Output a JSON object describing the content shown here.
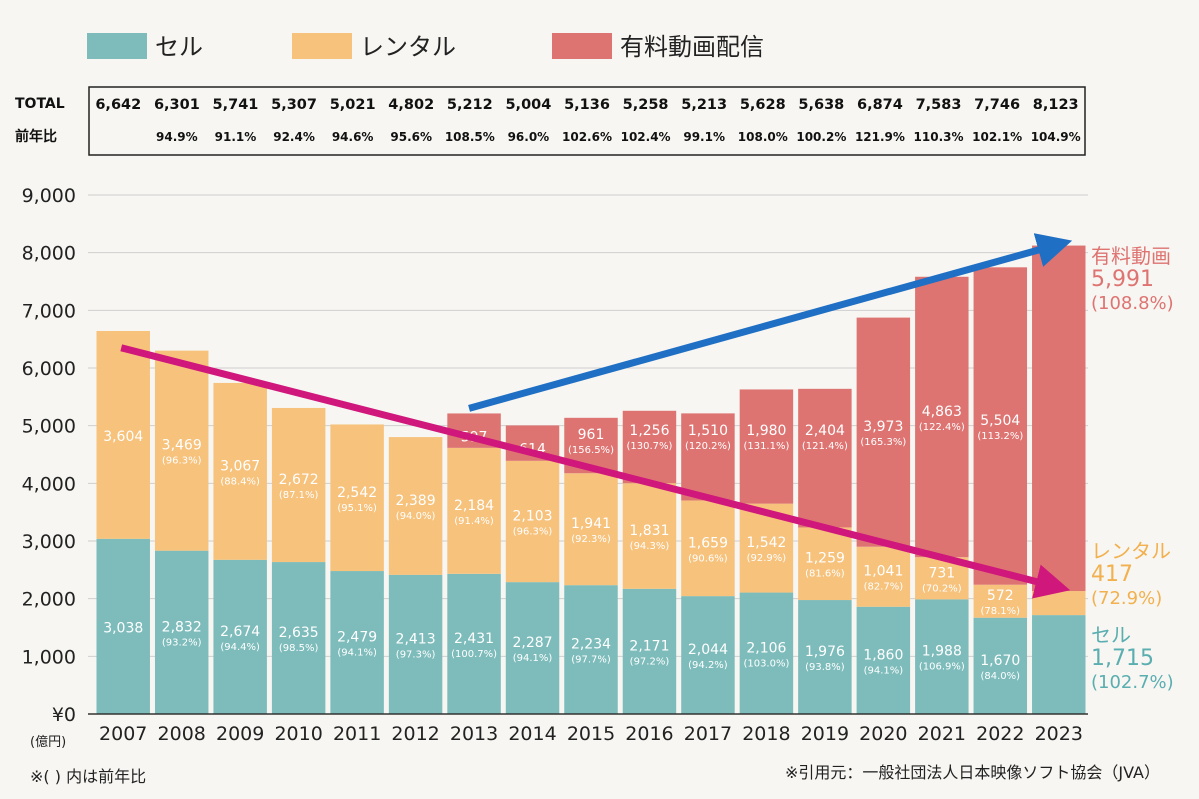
{
  "chart_data": {
    "type": "bar",
    "stacked": true,
    "categories": [
      "2007",
      "2008",
      "2009",
      "2010",
      "2011",
      "2012",
      "2013",
      "2014",
      "2015",
      "2016",
      "2017",
      "2018",
      "2019",
      "2020",
      "2021",
      "2022",
      "2023"
    ],
    "ylim": [
      0,
      9000
    ],
    "yticks": [
      "¥0",
      "1,000",
      "2,000",
      "3,000",
      "4,000",
      "5,000",
      "6,000",
      "7,000",
      "8,000",
      "9,000"
    ],
    "yunit": "(億円)",
    "colors": {
      "sell": "#7dbcbb",
      "rental": "#f6c27c",
      "stream": "#de7472",
      "blue_arrow": "#1f6fc4",
      "pink_arrow": "#d0177b"
    },
    "legend": [
      "セル",
      "レンタル",
      "有料動画配信"
    ],
    "series": [
      {
        "name": "セル",
        "values": [
          3038,
          2832,
          2674,
          2635,
          2479,
          2413,
          2431,
          2287,
          2234,
          2171,
          2044,
          2106,
          1976,
          1860,
          1988,
          1670,
          1715
        ],
        "labels": [
          "3,038",
          "2,832",
          "2,674",
          "2,635",
          "2,479",
          "2,413",
          "2,431",
          "2,287",
          "2,234",
          "2,171",
          "2,044",
          "2,106",
          "1,976",
          "1,860",
          "1,988",
          "1,670",
          ""
        ],
        "yoy": [
          "",
          "(93.2%)",
          "(94.4%)",
          "(98.5%)",
          "(94.1%)",
          "(97.3%)",
          "(100.7%)",
          "(94.1%)",
          "(97.7%)",
          "(97.2%)",
          "(94.2%)",
          "(103.0%)",
          "(93.8%)",
          "(94.1%)",
          "(106.9%)",
          "(84.0%)",
          ""
        ]
      },
      {
        "name": "レンタル",
        "values": [
          3604,
          3469,
          3067,
          2672,
          2542,
          2389,
          2184,
          2103,
          1941,
          1831,
          1659,
          1542,
          1259,
          1041,
          731,
          572,
          417
        ],
        "labels": [
          "3,604",
          "3,469",
          "3,067",
          "2,672",
          "2,542",
          "2,389",
          "2,184",
          "2,103",
          "1,941",
          "1,831",
          "1,659",
          "1,542",
          "1,259",
          "1,041",
          "731",
          "572",
          ""
        ],
        "yoy": [
          "",
          "(96.3%)",
          "(88.4%)",
          "(87.1%)",
          "(95.1%)",
          "(94.0%)",
          "(91.4%)",
          "(96.3%)",
          "(92.3%)",
          "(94.3%)",
          "(90.6%)",
          "(92.9%)",
          "(81.6%)",
          "(82.7%)",
          "(70.2%)",
          "(78.1%)",
          ""
        ]
      },
      {
        "name": "有料動画配信",
        "values": [
          0,
          0,
          0,
          0,
          0,
          0,
          597,
          614,
          961,
          1256,
          1510,
          1980,
          2404,
          3973,
          4863,
          5504,
          5991
        ],
        "labels": [
          "",
          "",
          "",
          "",
          "",
          "",
          "597",
          "614",
          "961",
          "1,256",
          "1,510",
          "1,980",
          "2,404",
          "3,973",
          "4,863",
          "5,504",
          ""
        ],
        "yoy": [
          "",
          "",
          "",
          "",
          "",
          "",
          "",
          "",
          "(156.5%)",
          "(130.7%)",
          "(120.2%)",
          "(131.1%)",
          "(121.4%)",
          "(165.3%)",
          "(122.4%)",
          "(113.2%)",
          ""
        ]
      }
    ],
    "table": {
      "total_label": "TOTAL",
      "yoy_label": "前年比",
      "total": [
        "6,642",
        "6,301",
        "5,741",
        "5,307",
        "5,021",
        "4,802",
        "5,212",
        "5,004",
        "5,136",
        "5,258",
        "5,213",
        "5,628",
        "5,638",
        "6,874",
        "7,583",
        "7,746",
        "8,123"
      ],
      "yoy": [
        "",
        "94.9%",
        "91.1%",
        "92.4%",
        "94.6%",
        "95.6%",
        "108.5%",
        "96.0%",
        "102.6%",
        "102.4%",
        "99.1%",
        "108.0%",
        "100.2%",
        "121.9%",
        "110.3%",
        "102.1%",
        "104.9%"
      ]
    },
    "annotations": [
      {
        "lines": [
          "有料動画",
          "5,991",
          "(108.8%)"
        ],
        "color": "#de7472",
        "anchor": 5991
      },
      {
        "lines": [
          "レンタル",
          "417",
          "(72.9%)"
        ],
        "color": "#f2b04e",
        "anchor": 2200
      },
      {
        "lines": [
          "セル",
          "1,715",
          "(102.7%)"
        ],
        "color": "#5aaeb0",
        "anchor": 1100
      }
    ],
    "arrows": [
      {
        "name": "streaming-growth-arrow",
        "from": {
          "x": "2013",
          "y": 5300
        },
        "to": {
          "x": "2023",
          "y": 8150
        },
        "color": "#1f6fc4"
      },
      {
        "name": "physical-decline-arrow",
        "from": {
          "x": "2007",
          "y": 6350
        },
        "to": {
          "x": "2023",
          "y": 2200
        },
        "color": "#d0177b"
      }
    ]
  },
  "footnote_left": "※( ) 内は前年比",
  "footnote_right": "※引用元：一般社団法人日本映像ソフト協会（JVA）"
}
